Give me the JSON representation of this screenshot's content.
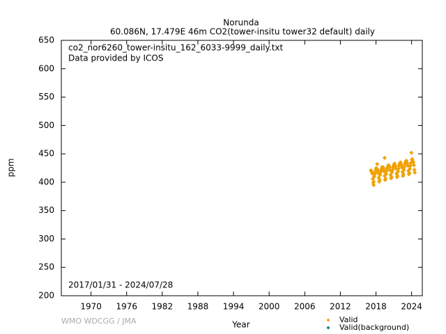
{
  "chart_data": {
    "type": "scatter",
    "title": "Norunda",
    "subtitle": "60.086N, 17.479E 46m    CO2(tower-insitu tower32 default) daily",
    "annotations": [
      "co2_nor6260_tower-insitu_162_6033-9999_daily.txt",
      "Data provided by ICOS",
      "2017/01/31 - 2024/07/28",
      "WMO WDCGG / JMA"
    ],
    "x_label": "Year",
    "y_label": "ppm",
    "xlim": [
      1965,
      2025.8
    ],
    "ylim": [
      200,
      650
    ],
    "xticks": [
      1970,
      1976,
      1982,
      1988,
      1994,
      2000,
      2006,
      2012,
      2018,
      2024
    ],
    "yticks": [
      200,
      250,
      300,
      350,
      400,
      450,
      500,
      550,
      600,
      650
    ],
    "legend": "lower right",
    "series": [
      {
        "name": "Valid",
        "color": "#f0a000",
        "x": [
          2017.12,
          2017.21,
          2017.29,
          2017.38,
          2017.46,
          2017.54,
          2017.62,
          2017.71,
          2017.79,
          2017.88,
          2017.96,
          2018.04,
          2018.12,
          2018.21,
          2018.29,
          2018.38,
          2018.46,
          2018.54,
          2018.62,
          2018.71,
          2018.79,
          2018.88,
          2018.96,
          2019.04,
          2019.12,
          2019.21,
          2019.29,
          2019.38,
          2019.46,
          2019.54,
          2019.62,
          2019.71,
          2019.79,
          2019.88,
          2019.96,
          2020.04,
          2020.12,
          2020.21,
          2020.29,
          2020.38,
          2020.46,
          2020.54,
          2020.62,
          2020.71,
          2020.79,
          2020.88,
          2020.96,
          2021.04,
          2021.12,
          2021.21,
          2021.29,
          2021.38,
          2021.46,
          2021.54,
          2021.62,
          2021.71,
          2021.79,
          2021.88,
          2021.96,
          2022.04,
          2022.12,
          2022.21,
          2022.29,
          2022.38,
          2022.46,
          2022.54,
          2022.62,
          2022.71,
          2022.79,
          2022.88,
          2022.96,
          2023.04,
          2023.12,
          2023.21,
          2023.29,
          2023.38,
          2023.46,
          2023.54,
          2023.62,
          2023.71,
          2023.79,
          2023.88,
          2023.96,
          2024.04,
          2024.12,
          2024.21,
          2024.29,
          2024.38,
          2024.46,
          2024.54,
          2019.45,
          2018.2,
          2017.6
        ],
        "values": [
          421,
          420,
          418,
          415,
          406,
          399,
          401,
          410,
          414,
          418,
          422,
          425,
          424,
          423,
          421,
          416,
          408,
          401,
          404,
          413,
          418,
          421,
          424,
          427,
          426,
          426,
          423,
          419,
          411,
          404,
          406,
          415,
          420,
          424,
          426,
          429,
          430,
          428,
          426,
          421,
          413,
          407,
          409,
          418,
          422,
          426,
          429,
          431,
          433,
          430,
          428,
          424,
          415,
          409,
          411,
          419,
          424,
          429,
          432,
          434,
          435,
          432,
          430,
          426,
          418,
          411,
          414,
          422,
          427,
          432,
          435,
          437,
          438,
          434,
          433,
          429,
          420,
          414,
          416,
          424,
          429,
          434,
          452,
          440,
          441,
          437,
          435,
          430,
          422,
          417,
          443,
          432,
          395
        ]
      },
      {
        "name": "Valid(background)",
        "color": "#008080",
        "x": [],
        "values": []
      }
    ]
  }
}
